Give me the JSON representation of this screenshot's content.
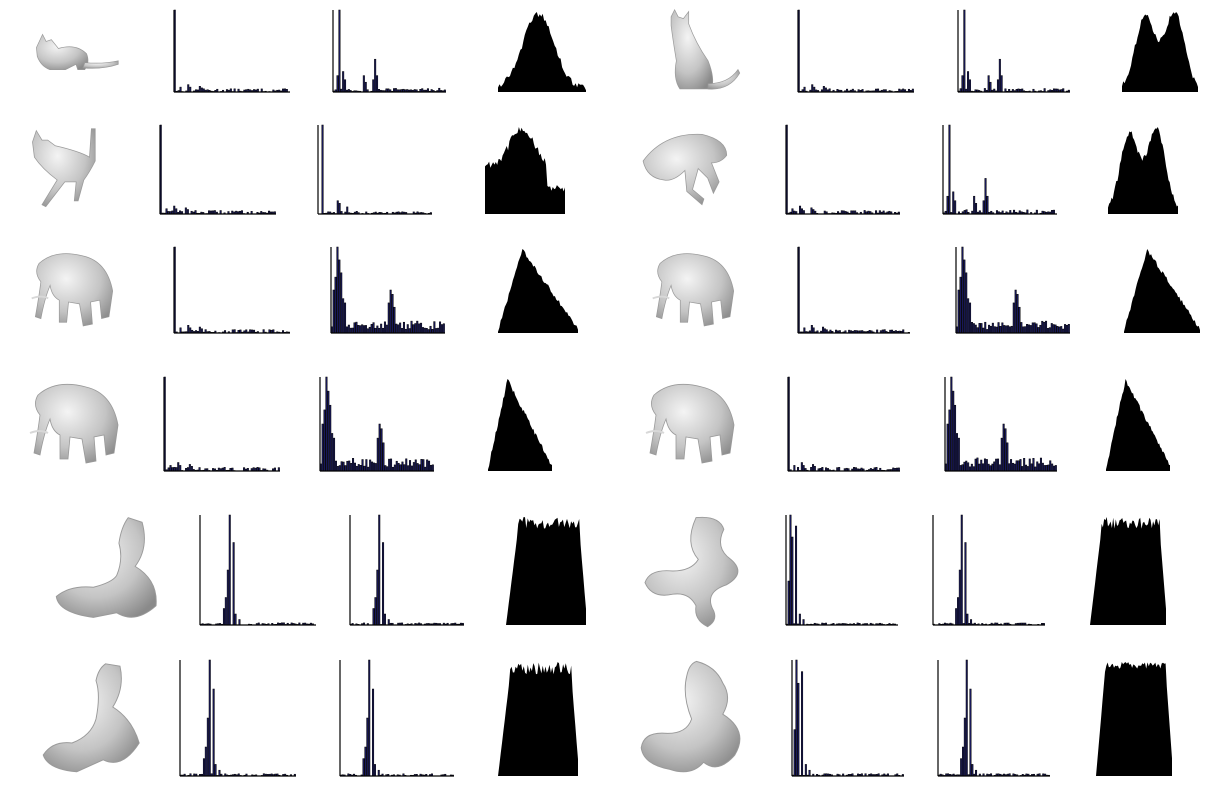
{
  "figure": {
    "rows": [
      {
        "name": "cat",
        "left": {
          "shape": "cat-crouching",
          "hist1": "spike-low",
          "hist2": "spiky-multi",
          "hist3": "wide-double-peak"
        },
        "right": {
          "shape": "cat-sitting",
          "hist1": "spike-low",
          "hist2": "spiky-multi",
          "hist3": "double-peak"
        }
      },
      {
        "name": "cat",
        "left": {
          "shape": "cat-walking",
          "hist1": "spike-low",
          "hist2": "spike-mid",
          "hist3": "wide-irregular"
        },
        "right": {
          "shape": "cat-leaping",
          "hist1": "spike-low",
          "hist2": "spiky-multi",
          "hist3": "double-peak"
        }
      },
      {
        "name": "elephant",
        "left": {
          "shape": "elephant-walking",
          "hist1": "spike-low",
          "hist2": "spiky-broad",
          "hist3": "triangle"
        },
        "right": {
          "shape": "elephant-front",
          "hist1": "spike-low",
          "hist2": "spiky-broad",
          "hist3": "triangle"
        }
      },
      {
        "name": "elephant",
        "left": {
          "shape": "elephant-turned",
          "hist1": "spike-low",
          "hist2": "spiky-broad",
          "hist3": "triangle"
        },
        "right": {
          "shape": "elephant-side",
          "hist1": "spike-low",
          "hist2": "spiky-broad",
          "hist3": "triangle"
        }
      },
      {
        "name": "tube",
        "left": {
          "shape": "tube-bent",
          "hist1": "twin-spike",
          "hist2": "twin-spike",
          "hist3": "plateau"
        },
        "right": {
          "shape": "tube-twisted",
          "hist1": "twin-spike-left",
          "hist2": "twin-spike",
          "hist3": "plateau"
        }
      },
      {
        "name": "tube",
        "left": {
          "shape": "tube-bent-2",
          "hist1": "twin-spike",
          "hist2": "twin-spike",
          "hist3": "plateau"
        },
        "right": {
          "shape": "tube-twisted-2",
          "hist1": "twin-spike-left",
          "hist2": "twin-spike",
          "hist3": "flat-plateau"
        }
      }
    ]
  }
}
